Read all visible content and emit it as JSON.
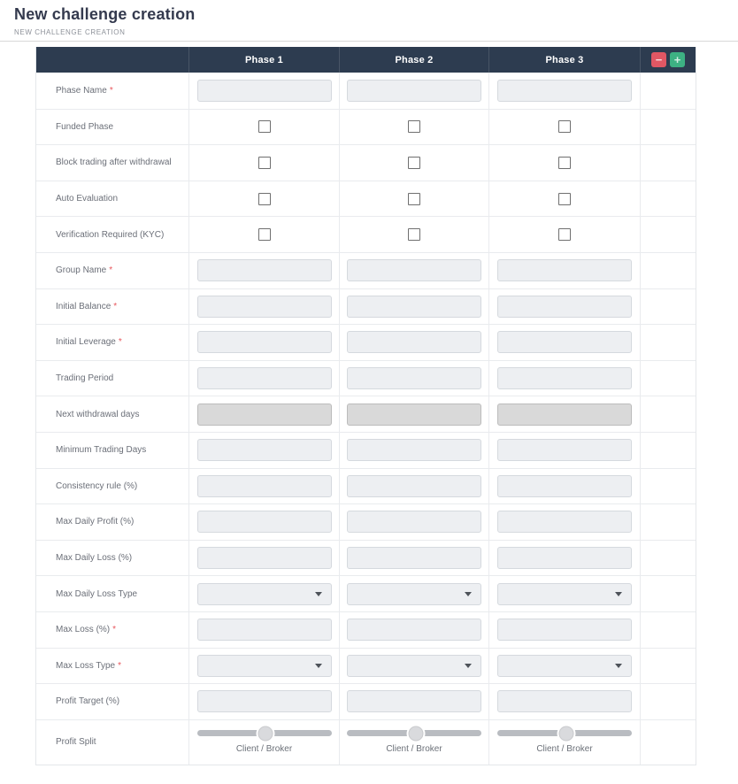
{
  "page": {
    "title": "New challenge creation",
    "breadcrumb": "NEW CHALLENGE CREATION"
  },
  "table": {
    "columns": [
      "Phase 1",
      "Phase 2",
      "Phase 3"
    ],
    "remove_phase_label": "−",
    "add_phase_label": "+",
    "required_marker": "*",
    "rows": [
      {
        "label": "Phase Name",
        "required": true,
        "control": "text",
        "value": "",
        "disabled": false
      },
      {
        "label": "Funded Phase",
        "required": false,
        "control": "checkbox",
        "checked": false
      },
      {
        "label": "Block trading after withdrawal",
        "required": false,
        "control": "checkbox",
        "checked": false
      },
      {
        "label": "Auto Evaluation",
        "required": false,
        "control": "checkbox",
        "checked": false
      },
      {
        "label": "Verification Required (KYC)",
        "required": false,
        "control": "checkbox",
        "checked": false
      },
      {
        "label": "Group Name",
        "required": true,
        "control": "text",
        "value": "",
        "disabled": false
      },
      {
        "label": "Initial Balance",
        "required": true,
        "control": "text",
        "value": "",
        "disabled": false
      },
      {
        "label": "Initial Leverage",
        "required": true,
        "control": "text",
        "value": "",
        "disabled": false
      },
      {
        "label": "Trading Period",
        "required": false,
        "control": "text",
        "value": "",
        "disabled": false
      },
      {
        "label": "Next withdrawal days",
        "required": false,
        "control": "text",
        "value": "",
        "disabled": true
      },
      {
        "label": "Minimum Trading Days",
        "required": false,
        "control": "text",
        "value": "",
        "disabled": false
      },
      {
        "label": "Consistency rule (%)",
        "required": false,
        "control": "text",
        "value": "",
        "disabled": false
      },
      {
        "label": "Max Daily Profit (%)",
        "required": false,
        "control": "text",
        "value": "",
        "disabled": false
      },
      {
        "label": "Max Daily Loss (%)",
        "required": false,
        "control": "text",
        "value": "",
        "disabled": false
      },
      {
        "label": "Max Daily Loss Type",
        "required": false,
        "control": "select",
        "selected_value": ""
      },
      {
        "label": "Max Loss (%)",
        "required": true,
        "control": "text",
        "value": "",
        "disabled": false
      },
      {
        "label": "Max Loss Type",
        "required": true,
        "control": "select",
        "selected_value": ""
      },
      {
        "label": "Profit Target (%)",
        "required": false,
        "control": "text",
        "value": "",
        "disabled": false
      },
      {
        "label": "Profit Split",
        "required": false,
        "control": "slider",
        "slider_caption": "Client / Broker",
        "slider_value_percent": 51
      }
    ]
  },
  "colors": {
    "header_bg": "#2d3c50",
    "remove_button": "#e05764",
    "add_button": "#3db183",
    "required_marker": "#e8565c",
    "field_bg": "#edeff2",
    "disabled_field_bg": "#d9d9d9"
  }
}
